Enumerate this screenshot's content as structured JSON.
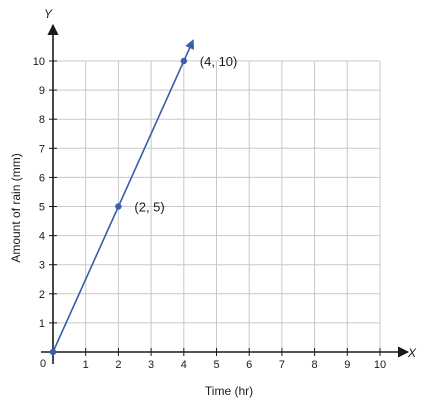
{
  "chart_data": {
    "type": "line",
    "title": "",
    "xlabel": "Time (hr)",
    "ylabel": "Amount of rain (mm)",
    "x_axis_letter": "X",
    "y_axis_letter": "Y",
    "origin_label": "0",
    "xlim": [
      0,
      10
    ],
    "ylim": [
      0,
      10
    ],
    "x_ticks": [
      1,
      2,
      3,
      4,
      5,
      6,
      7,
      8,
      9,
      10
    ],
    "y_ticks": [
      1,
      2,
      3,
      4,
      5,
      6,
      7,
      8,
      9,
      10
    ],
    "grid": true,
    "series": [
      {
        "x": [
          0,
          2,
          4
        ],
        "y": [
          0,
          5,
          10
        ],
        "arrow_end": true
      }
    ],
    "points": [
      {
        "x": 0,
        "y": 0,
        "label": ""
      },
      {
        "x": 2,
        "y": 5,
        "label": "(2, 5)"
      },
      {
        "x": 4,
        "y": 10,
        "label": "(4, 10)"
      }
    ],
    "colors": {
      "line": "#3a5fa8",
      "point": "#3a5fa8",
      "grid": "#c8c8c8",
      "axis": "#1a1a1a"
    }
  }
}
